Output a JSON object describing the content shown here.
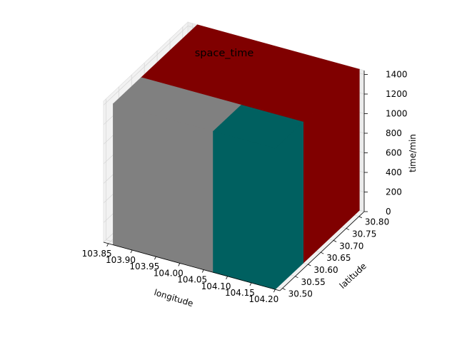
{
  "chart_data": {
    "type": "bar3d",
    "title": "space_time",
    "xlabel": "longitude",
    "ylabel": "latitude",
    "zlabel": "time/min",
    "x_ticks": [
      "103.85",
      "103.90",
      "103.95",
      "104.00",
      "104.05",
      "104.10",
      "104.15",
      "104.20"
    ],
    "y_ticks": [
      "30.50",
      "30.55",
      "30.60",
      "30.65",
      "30.70",
      "30.75",
      "30.80"
    ],
    "z_ticks": [
      "0",
      "200",
      "400",
      "600",
      "800",
      "1000",
      "1200",
      "1400"
    ],
    "xlim": [
      103.84,
      104.21
    ],
    "ylim": [
      30.49,
      30.82
    ],
    "zlim": [
      0,
      1440
    ],
    "grid": true,
    "boxes": [
      {
        "x": [
          103.86,
          104.07
        ],
        "y": [
          30.49,
          30.6
        ],
        "z": [
          0,
          1440
        ],
        "color": "#808080"
      },
      {
        "x": [
          104.07,
          104.2
        ],
        "y": [
          30.49,
          30.6
        ],
        "z": [
          0,
          1440
        ],
        "color": "#006060"
      },
      {
        "x": [
          103.86,
          104.2
        ],
        "y": [
          30.6,
          30.82
        ],
        "z": [
          0,
          1440
        ],
        "color": "#800000"
      }
    ]
  }
}
